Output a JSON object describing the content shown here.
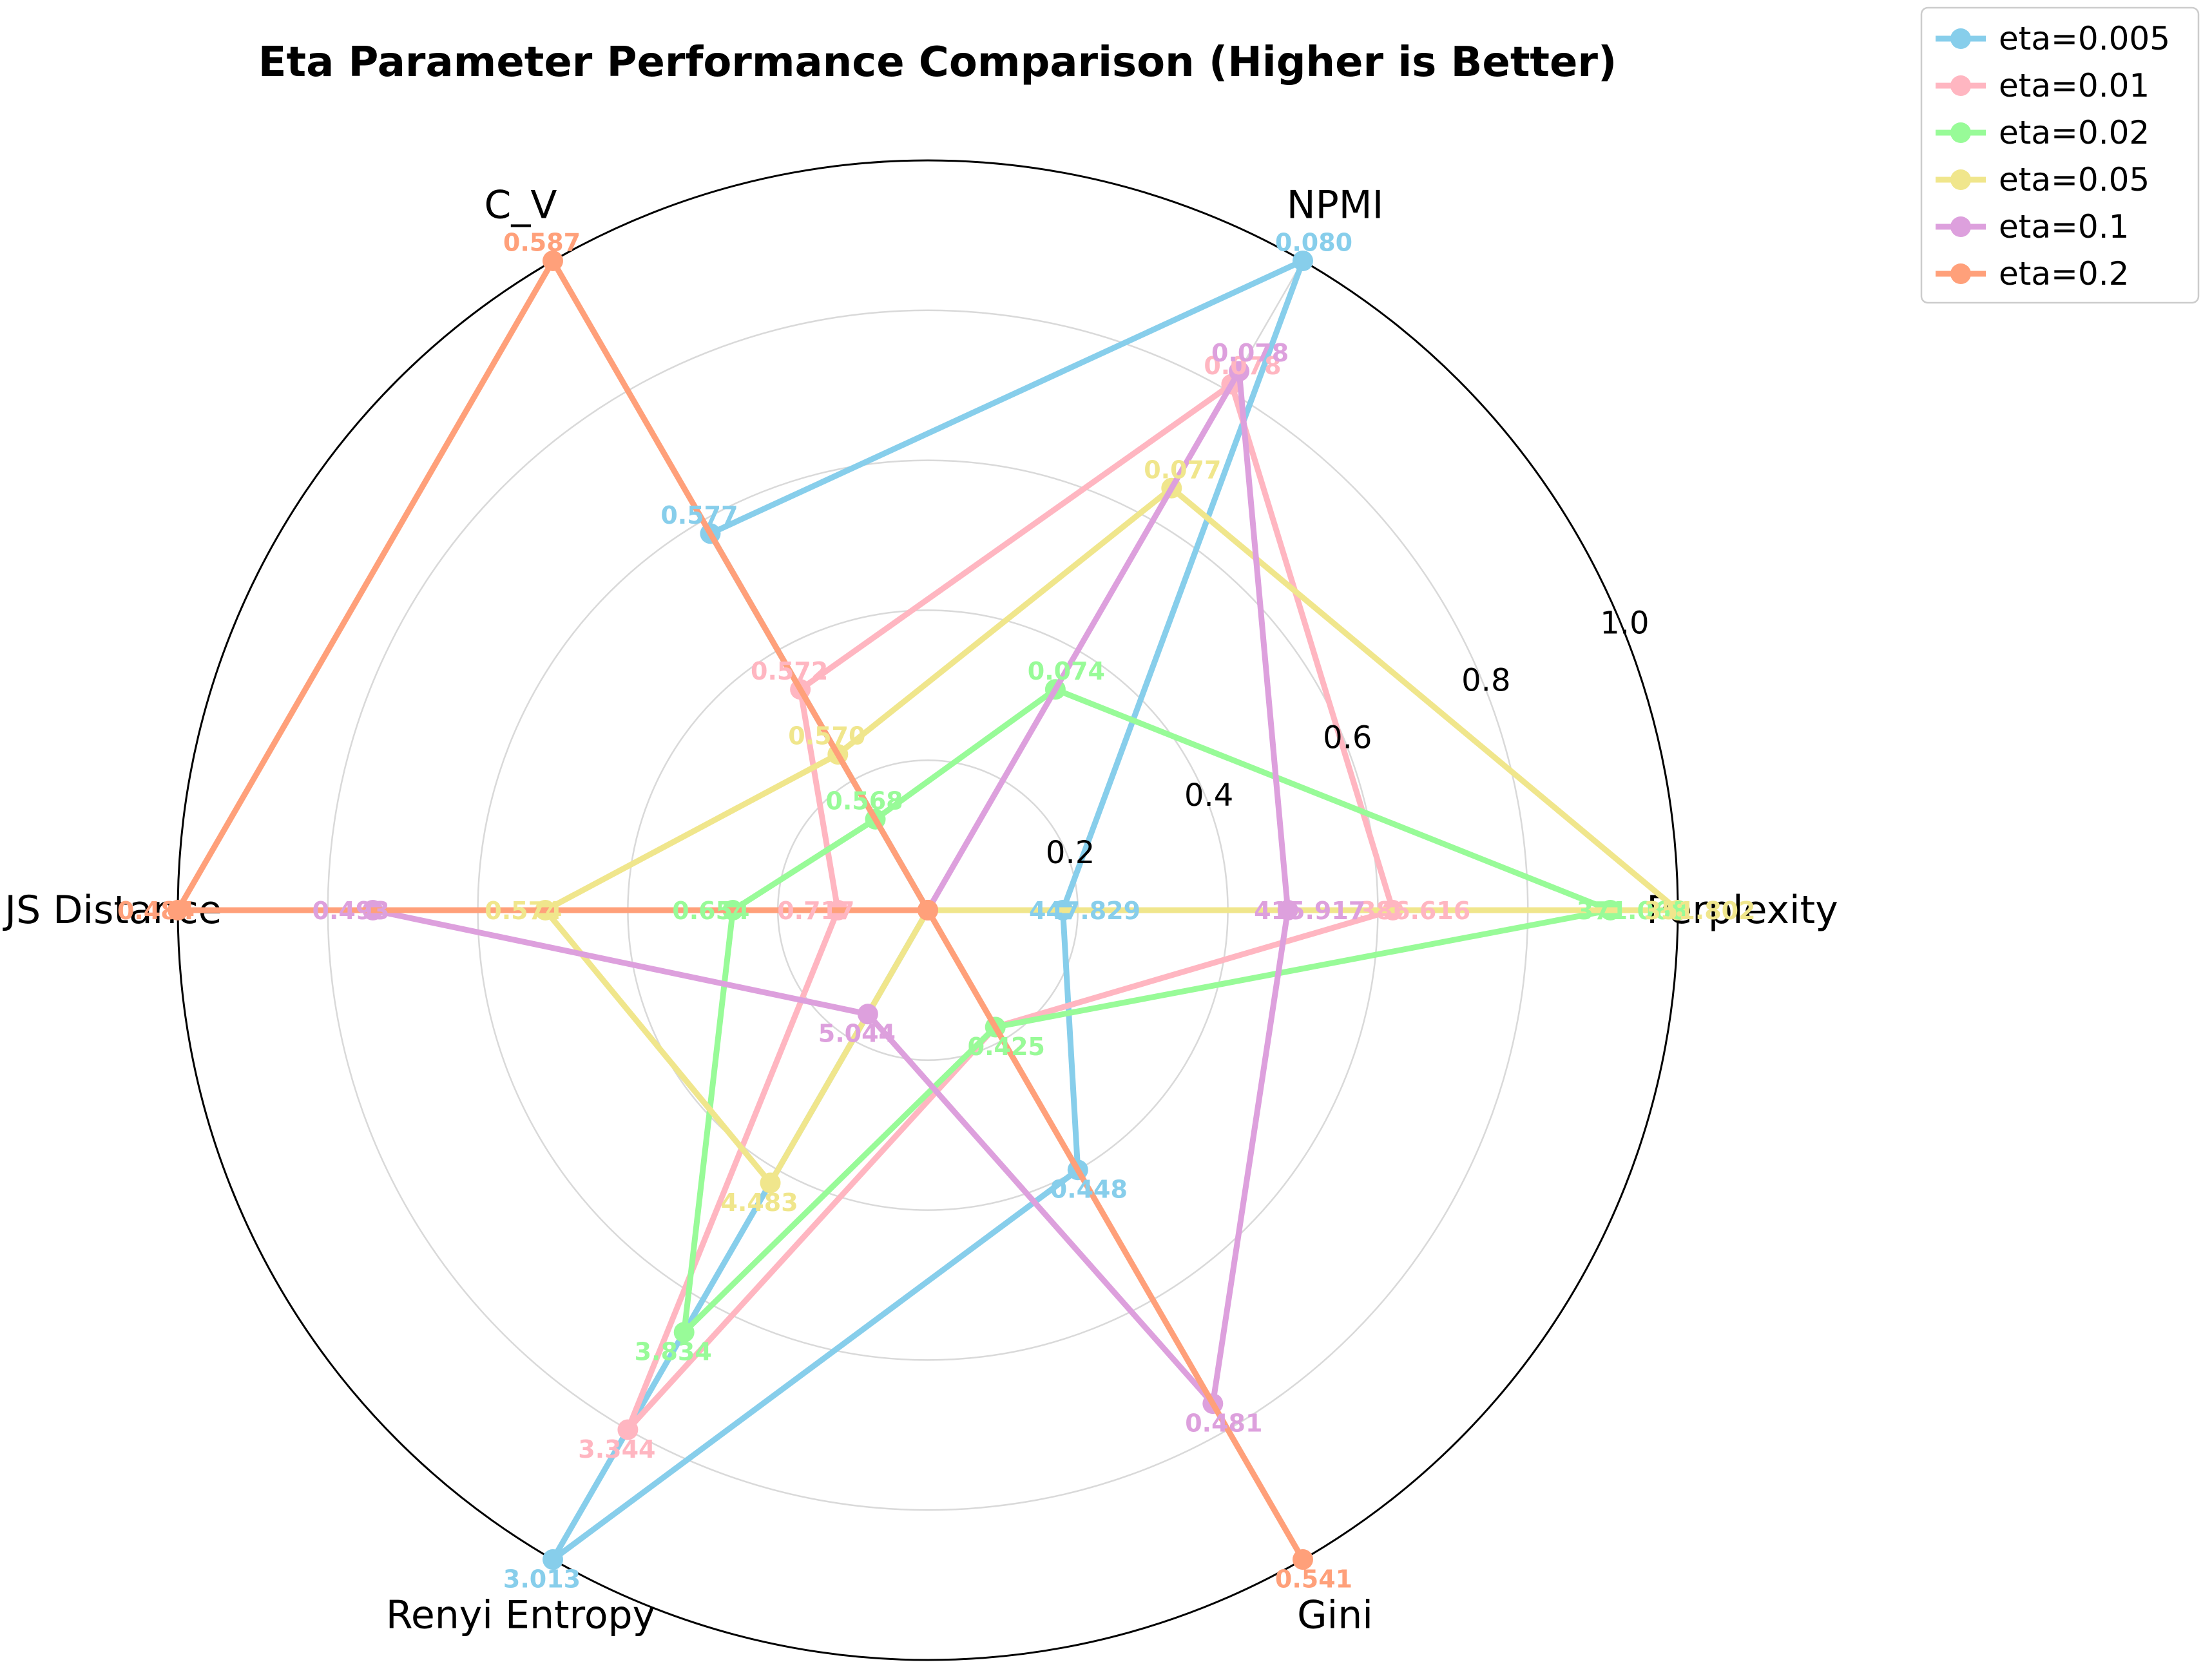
{
  "chart_data": {
    "type": "radar",
    "title": "Eta Parameter Performance Comparison (Higher is Better)",
    "axes": [
      "Perplexity",
      "NPMI",
      "C_V",
      "JS Distance",
      "Renyi Entropy",
      "Gini"
    ],
    "rlim": [
      0,
      1.0
    ],
    "rticks": [
      "0.2",
      "0.4",
      "0.6",
      "0.8",
      "1.0"
    ],
    "grid": true,
    "legend_position": "top-right (outside plot)",
    "series": [
      {
        "name": "eta=0.005",
        "color": "#87CEEB",
        "values": [
          0.18,
          1.0,
          0.58,
          0.0,
          1.0,
          0.4
        ],
        "labels": [
          "447.829",
          "0.080",
          "0.577",
          "",
          "3.013",
          "0.448"
        ]
      },
      {
        "name": "eta=0.01",
        "color": "#FFB6C1",
        "values": [
          0.62,
          0.81,
          0.34,
          0.12,
          0.8,
          0.18
        ],
        "labels": [
          "386.616",
          "0.078",
          "0.572",
          "0.717",
          "3.344",
          "0.425"
        ]
      },
      {
        "name": "eta=0.02",
        "color": "#98FB98",
        "values": [
          0.91,
          0.34,
          0.14,
          0.26,
          0.65,
          0.18
        ],
        "labels": [
          "371.068",
          "0.074",
          "0.568",
          "0.654",
          "3.834",
          "0.425"
        ]
      },
      {
        "name": "eta=0.05",
        "color": "#F0E68C",
        "values": [
          1.0,
          0.65,
          0.24,
          0.51,
          0.42,
          0.0
        ],
        "labels": [
          "351.802",
          "0.077",
          "0.570",
          "0.574",
          "4.483",
          ""
        ]
      },
      {
        "name": "eta=0.1",
        "color": "#DDA0DD",
        "values": [
          0.48,
          0.83,
          0.0,
          0.74,
          0.16,
          0.76
        ],
        "labels": [
          "415.917",
          "0.078",
          "",
          "0.493",
          "5.044",
          "0.481"
        ]
      },
      {
        "name": "eta=0.2",
        "color": "#FFA07A",
        "values": [
          0.0,
          0.0,
          1.0,
          1.0,
          0.0,
          1.0
        ],
        "labels": [
          "",
          "",
          "0.587",
          "0.484",
          "",
          "0.541"
        ]
      }
    ]
  }
}
